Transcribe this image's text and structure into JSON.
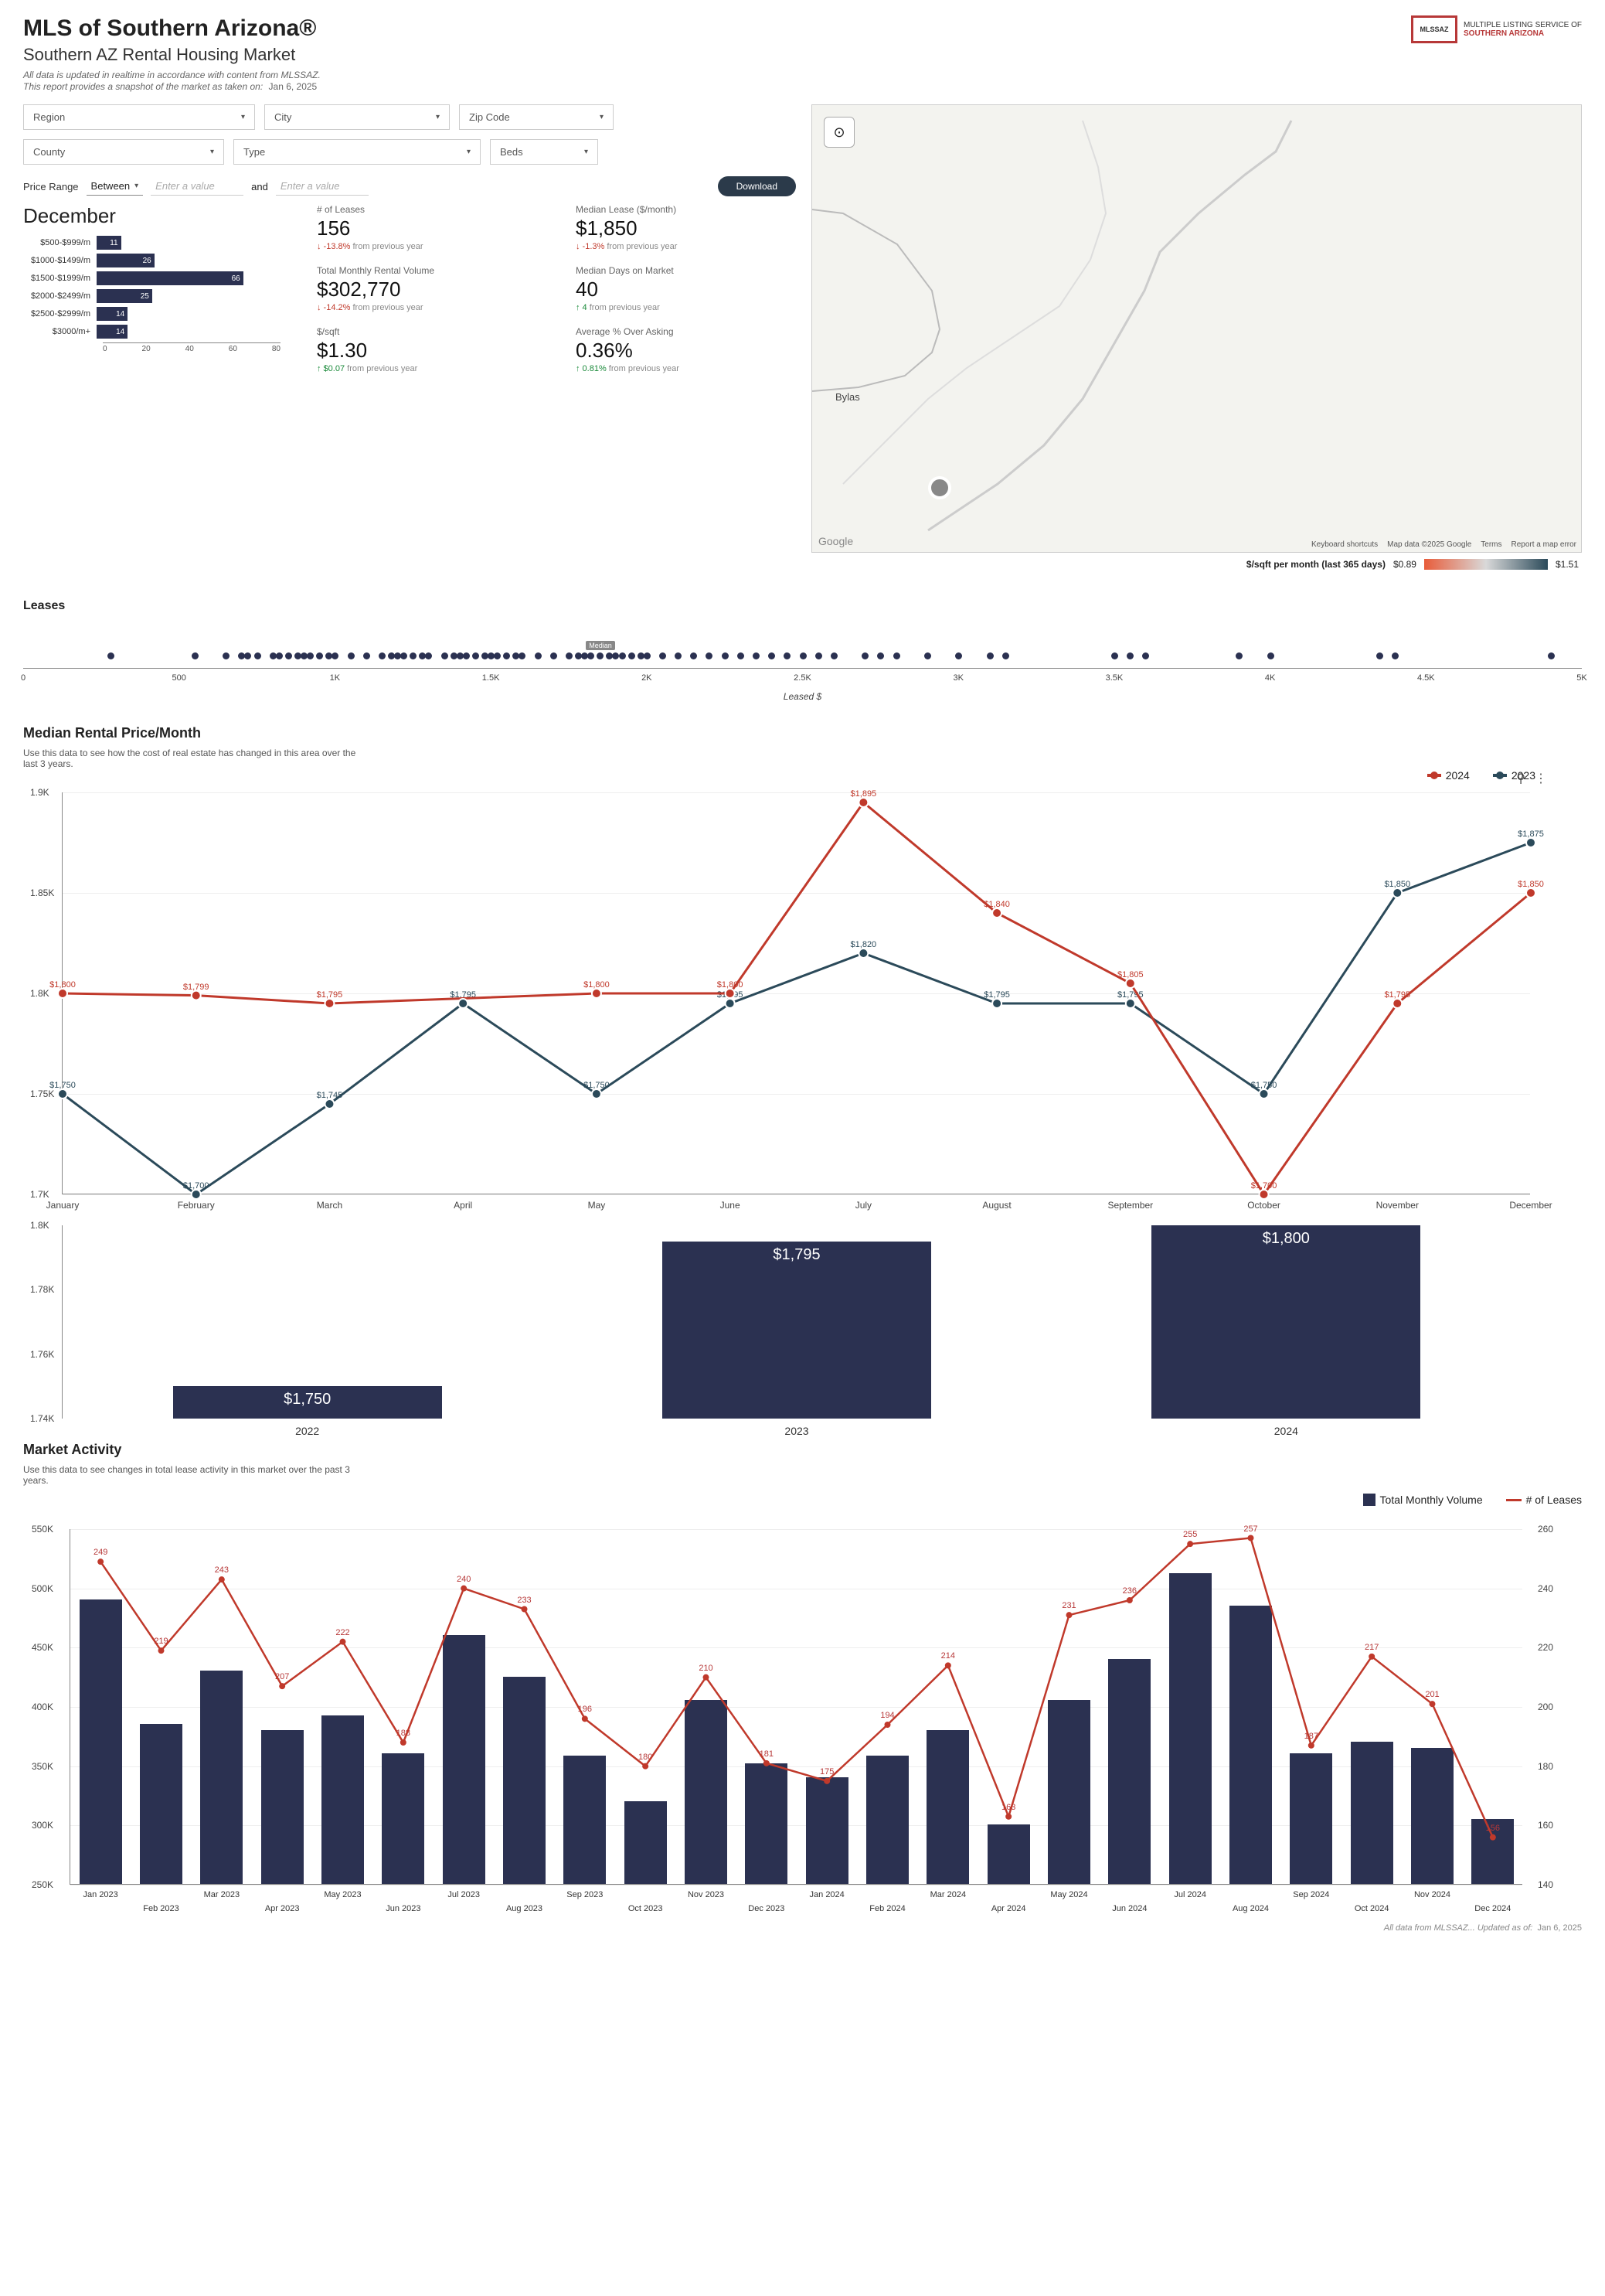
{
  "header": {
    "title": "MLS of Southern Arizona®",
    "subtitle": "Southern AZ Rental Housing Market",
    "note1": "All data is updated in realtime in accordance with content from MLSSAZ.",
    "note2_prefix": "This report provides a snapshot of the market as taken on:",
    "note2_date": "Jan 6, 2025",
    "logo_line1": "MULTIPLE LISTING SERVICE OF",
    "logo_line2": "SOUTHERN ARIZONA"
  },
  "filters": {
    "region": "Region",
    "city": "City",
    "zip": "Zip Code",
    "county": "County",
    "type": "Type",
    "beds": "Beds",
    "price_range_label": "Price Range",
    "between": "Between",
    "placeholder": "Enter a value",
    "and": "and",
    "download": "Download"
  },
  "month_heading": "December",
  "price_bars": {
    "max": 80,
    "rows": [
      {
        "label": "$500-$999/m",
        "value": 11
      },
      {
        "label": "$1000-$1499/m",
        "value": 26
      },
      {
        "label": "$1500-$1999/m",
        "value": 66
      },
      {
        "label": "$2000-$2499/m",
        "value": 25
      },
      {
        "label": "$2500-$2999/m",
        "value": 14
      },
      {
        "label": "$3000/m+",
        "value": 14
      }
    ],
    "ticks": [
      "0",
      "20",
      "40",
      "60",
      "80"
    ]
  },
  "stats": [
    {
      "label": "# of Leases",
      "value": "156",
      "dir": "down",
      "change": "-13.8%",
      "suffix": " from previous year"
    },
    {
      "label": "Median Lease ($/month)",
      "value": "$1,850",
      "dir": "down",
      "change": "-1.3%",
      "suffix": " from previous year"
    },
    {
      "label": "Total Monthly Rental Volume",
      "value": "$302,770",
      "dir": "down",
      "change": "-14.2%",
      "suffix": " from previous year"
    },
    {
      "label": "Median Days on Market",
      "value": "40",
      "dir": "up",
      "change": "4",
      "suffix": " from previous year"
    },
    {
      "label": "$/sqft",
      "value": "$1.30",
      "dir": "up",
      "change": "$0.07",
      "suffix": " from previous year"
    },
    {
      "label": "Average % Over Asking",
      "value": "0.36%",
      "dir": "up",
      "change": "0.81%",
      "suffix": " from previous year"
    }
  ],
  "map": {
    "place1": "Bylas",
    "attrib": [
      "Keyboard shortcuts",
      "Map data ©2025 Google",
      "Terms",
      "Report a map error"
    ],
    "google": "Google",
    "legend_label": "$/sqft per month (last 365 days)",
    "legend_min": "$0.89",
    "legend_max": "$1.51"
  },
  "leases_strip": {
    "title": "Leases",
    "xlabel": "Leased $",
    "median_label": "Median",
    "min": 0,
    "max": 5000,
    "median": 1850,
    "ticks": [
      "0",
      "500",
      "1K",
      "1.5K",
      "2K",
      "2.5K",
      "3K",
      "3.5K",
      "4K",
      "4.5K",
      "5K"
    ],
    "points": [
      280,
      550,
      650,
      700,
      720,
      750,
      800,
      820,
      850,
      880,
      900,
      920,
      950,
      980,
      1000,
      1050,
      1100,
      1150,
      1180,
      1200,
      1220,
      1250,
      1280,
      1300,
      1350,
      1380,
      1400,
      1420,
      1450,
      1480,
      1500,
      1520,
      1550,
      1580,
      1600,
      1650,
      1700,
      1750,
      1780,
      1800,
      1820,
      1850,
      1880,
      1900,
      1920,
      1950,
      1980,
      2000,
      2050,
      2100,
      2150,
      2200,
      2250,
      2300,
      2350,
      2400,
      2450,
      2500,
      2550,
      2600,
      2700,
      2750,
      2800,
      2900,
      3000,
      3100,
      3150,
      3500,
      3550,
      3600,
      3900,
      4000,
      4350,
      4400,
      4900
    ]
  },
  "median_chart": {
    "title": "Median Rental Price/Month",
    "subtitle": "Use this data to see how the cost of real estate has changed in this area over the last 3 years.",
    "ymin": 1700,
    "ymax": 1900,
    "yticks": [
      {
        "v": 1700,
        "l": "1.7K"
      },
      {
        "v": 1750,
        "l": "1.75K"
      },
      {
        "v": 1800,
        "l": "1.8K"
      },
      {
        "v": 1850,
        "l": "1.85K"
      },
      {
        "v": 1900,
        "l": "1.9K"
      }
    ],
    "months": [
      "January",
      "February",
      "March",
      "April",
      "May",
      "June",
      "July",
      "August",
      "September",
      "October",
      "November",
      "December"
    ],
    "series": [
      {
        "name": "2024",
        "color": "#c0392b",
        "values": [
          1800,
          1799,
          1795,
          null,
          1800,
          1800,
          1895,
          1840,
          1805,
          1700,
          1795,
          1850
        ],
        "labels": [
          "$1,800",
          "$1,799",
          "$1,795",
          "",
          "$1,800",
          "$1,800",
          "$1,895",
          "$1,840",
          "$1,805",
          "$1,700",
          "$1,795",
          "$1,850"
        ]
      },
      {
        "name": "2023",
        "color": "#2b4a5a",
        "values": [
          1750,
          1700,
          1745,
          1795,
          1750,
          1795,
          1820,
          1795,
          1795,
          1750,
          1850,
          1875
        ],
        "labels": [
          "$1,750",
          "$1,700",
          "$1,745",
          "$1,795",
          "$1,750",
          "$1,795",
          "$1,820",
          "$1,795",
          "$1,795",
          "$1,750",
          "$1,850",
          "$1,875"
        ]
      }
    ]
  },
  "year_bars": {
    "ymin": 1740,
    "ymax": 1800,
    "yticks": [
      {
        "v": 1740,
        "l": "1.74K"
      },
      {
        "v": 1760,
        "l": "1.76K"
      },
      {
        "v": 1780,
        "l": "1.78K"
      },
      {
        "v": 1800,
        "l": "1.8K"
      }
    ],
    "bars": [
      {
        "label": "2022",
        "value": 1750,
        "text": "$1,750"
      },
      {
        "label": "2023",
        "value": 1795,
        "text": "$1,795"
      },
      {
        "label": "2024",
        "value": 1800,
        "text": "$1,800"
      }
    ],
    "bar_color": "#2b3151"
  },
  "market_activity": {
    "title": "Market Activity",
    "subtitle": "Use this data to see changes in total lease activity in this market over the past 3 years.",
    "legend": [
      {
        "name": "Total Monthly Volume",
        "type": "bar",
        "color": "#2b3151"
      },
      {
        "name": "# of Leases",
        "type": "line",
        "color": "#c0392b"
      }
    ],
    "yl_min": 250,
    "yl_max": 550,
    "yr_min": 140,
    "yr_max": 260,
    "yl_ticks": [
      {
        "v": 250,
        "l": "250K"
      },
      {
        "v": 300,
        "l": "300K"
      },
      {
        "v": 350,
        "l": "350K"
      },
      {
        "v": 400,
        "l": "400K"
      },
      {
        "v": 450,
        "l": "450K"
      },
      {
        "v": 500,
        "l": "500K"
      },
      {
        "v": 550,
        "l": "550K"
      }
    ],
    "yr_ticks": [
      {
        "v": 140,
        "l": "140"
      },
      {
        "v": 160,
        "l": "160"
      },
      {
        "v": 180,
        "l": "180"
      },
      {
        "v": 200,
        "l": "200"
      },
      {
        "v": 220,
        "l": "220"
      },
      {
        "v": 240,
        "l": "240"
      },
      {
        "v": 260,
        "l": "260"
      }
    ],
    "labels": [
      "Jan 2023",
      "Feb 2023",
      "Mar 2023",
      "Apr 2023",
      "May 2023",
      "Jun 2023",
      "Jul 2023",
      "Aug 2023",
      "Sep 2023",
      "Oct 2023",
      "Nov 2023",
      "Dec 2023",
      "Jan 2024",
      "Feb 2024",
      "Mar 2024",
      "Apr 2024",
      "May 2024",
      "Jun 2024",
      "Jul 2024",
      "Aug 2024",
      "Sep 2024",
      "Oct 2024",
      "Nov 2024",
      "Dec 2024"
    ],
    "volume": [
      490,
      385,
      430,
      380,
      392,
      360,
      460,
      425,
      358,
      320,
      405,
      352,
      340,
      358,
      380,
      300,
      405,
      440,
      512,
      485,
      360,
      370,
      365,
      305
    ],
    "leases": [
      249,
      219,
      243,
      207,
      222,
      188,
      240,
      233,
      196,
      180,
      210,
      181,
      175,
      194,
      214,
      163,
      231,
      236,
      255,
      257,
      187,
      217,
      201,
      156
    ]
  },
  "footer": {
    "text": "All data from MLSSAZ... Updated as of:",
    "date": "Jan 6, 2025"
  }
}
